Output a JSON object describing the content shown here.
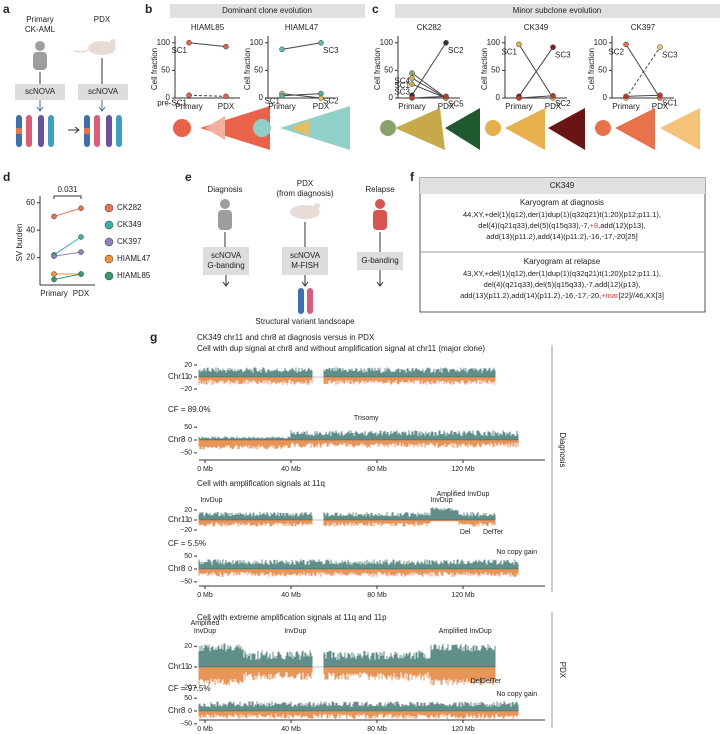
{
  "a": {
    "label": "a",
    "primary": [
      "Primary",
      "CK-AML"
    ],
    "pdx": "PDX",
    "method": [
      "scNOVA",
      "scNOVA"
    ]
  },
  "b": {
    "label": "b",
    "header": "Dominant clone evolution"
  },
  "c": {
    "label": "c",
    "header": "Minor subclone evolution"
  },
  "d": {
    "label": "d"
  },
  "chart_data": [
    {
      "type": "line",
      "title": "HIAML85",
      "y_label": "Cell fraction",
      "categories": [
        "Primary",
        "PDX"
      ],
      "ylim": [
        0,
        105
      ],
      "yticks": [
        0,
        50,
        100
      ],
      "series": [
        {
          "name": "SC1",
          "color": "#e8634a",
          "values": [
            100,
            93
          ]
        },
        {
          "name": "pre-SC1",
          "color": "#e8634a",
          "dashed": true,
          "values": [
            5,
            3
          ]
        }
      ]
    },
    {
      "type": "line",
      "title": "HIAML47",
      "y_label": "Cell fraction",
      "categories": [
        "Primary",
        "PDX"
      ],
      "ylim": [
        0,
        105
      ],
      "yticks": [
        0,
        50,
        100
      ],
      "series": [
        {
          "name": "SC3",
          "color": "#5fbfb5",
          "values": [
            88,
            100
          ]
        },
        {
          "name": "SC1",
          "color": "#e2bf5e",
          "values": [
            8,
            0
          ]
        },
        {
          "name": "SC2",
          "color": "#4fb3a8",
          "values": [
            4,
            8
          ]
        }
      ]
    },
    {
      "type": "line",
      "title": "CK282",
      "y_label": "Cell fraction",
      "categories": [
        "Primary",
        "PDX"
      ],
      "ylim": [
        0,
        105
      ],
      "yticks": [
        0,
        50,
        100
      ],
      "series": [
        {
          "name": "SC2",
          "color": "#333333",
          "values": [
            5,
            100
          ]
        },
        {
          "name": "SC4",
          "color": "#8aa36a",
          "values": [
            45,
            0
          ]
        },
        {
          "name": "SC1",
          "color": "#d9b24c",
          "values": [
            36,
            0
          ]
        },
        {
          "name": "SC3",
          "color": "#c8a94a",
          "values": [
            25,
            0
          ]
        },
        {
          "name": "SC5",
          "color": "#c0392b",
          "values": [
            0,
            3
          ]
        }
      ]
    },
    {
      "type": "line",
      "title": "CK349",
      "y_label": "Cell fraction",
      "categories": [
        "Primary",
        "PDX"
      ],
      "ylim": [
        0,
        105
      ],
      "yticks": [
        0,
        50,
        100
      ],
      "series": [
        {
          "name": "SC1",
          "color": "#e8b04a",
          "values": [
            97,
            0
          ]
        },
        {
          "name": "SC3",
          "color": "#8b1a1a",
          "values": [
            3,
            92
          ]
        },
        {
          "name": "SC2",
          "color": "#c0392b",
          "values": [
            0,
            4
          ]
        }
      ]
    },
    {
      "type": "line",
      "title": "CK397",
      "y_label": "Cell fraction",
      "categories": [
        "Primary",
        "PDX"
      ],
      "ylim": [
        0,
        105
      ],
      "yticks": [
        0,
        50,
        100
      ],
      "series": [
        {
          "name": "SC2",
          "color": "#e8734a",
          "values": [
            97,
            0
          ]
        },
        {
          "name": "SC3",
          "color": "#f5c27a",
          "dashed": true,
          "values": [
            0,
            92
          ]
        },
        {
          "name": "SC1",
          "color": "#c0392b",
          "values": [
            3,
            5
          ]
        }
      ]
    },
    {
      "type": "line",
      "y_label": "SV burden",
      "categories": [
        "Primary",
        "PDX"
      ],
      "ylim": [
        0,
        62
      ],
      "yticks": [
        20,
        40,
        60
      ],
      "annotation": "0.031",
      "legend": true,
      "series": [
        {
          "name": "CK282",
          "color": "#e8735a",
          "values": [
            50,
            56
          ]
        },
        {
          "name": "CK349",
          "color": "#3bb3a8",
          "values": [
            22,
            35
          ]
        },
        {
          "name": "CK397",
          "color": "#8a84c0",
          "values": [
            21,
            24
          ]
        },
        {
          "name": "HIAML47",
          "color": "#f0943a",
          "values": [
            8,
            8
          ]
        },
        {
          "name": "HIAML85",
          "color": "#2e9e6e",
          "values": [
            4,
            8
          ]
        }
      ]
    }
  ],
  "e": {
    "label": "e",
    "diagnosis": "Diagnosis",
    "pdx": [
      "PDX",
      "(from diagnosis)"
    ],
    "relapse": "Relapse",
    "boxes": [
      [
        "scNOVA",
        "G-banding"
      ],
      [
        "scNOVA",
        "M-FISH"
      ],
      [
        "G-banding"
      ]
    ],
    "result": "Structural variant landscape"
  },
  "f": {
    "label": "f",
    "header": "CK349",
    "blocks": [
      {
        "title": "Karyogram at diagnosis",
        "lines": [
          [
            "44,XY,+del(1)(q12),der(1)dup(1)(q32q21)t(1;20)(p12;p11.1),"
          ],
          [
            "del(4)(q21q33),del(5)(q15q33),-7,",
            {
              "text": "+8",
              "color": "#e53935"
            },
            ",add(12)(p13),"
          ],
          [
            "add(13)(p11.2),add(14)(p11.2),-16,-17,-20[25]"
          ]
        ]
      },
      {
        "title": "Karyogram at relapse",
        "lines": [
          [
            "43,XY,+del(1)(q12),der(1)dup(1)(q32q21)t(1;20)(p12;p11.1),"
          ],
          [
            "del(4)(q21q33),del(5)(q15q33),-7,add(12)(p13),"
          ],
          [
            "add(13)(p11.2),add(14)(p11.2),-16,-17,-20,",
            {
              "text": "+mar",
              "color": "#e53935"
            },
            "[22]//46,XX[3]"
          ]
        ]
      }
    ]
  },
  "g": {
    "label": "g",
    "title": "CK349 chr11 and chr8 at diagnosis versus in PDX",
    "xlim": [
      0,
      158
    ],
    "xticks": [
      {
        "value": 0,
        "label": "0 Mb"
      },
      {
        "value": 40,
        "label": "40 Mb"
      },
      {
        "value": 80,
        "label": "80 Mb"
      },
      {
        "value": 120,
        "label": "120 Mb"
      }
    ],
    "sections": [
      {
        "side_label": "Diagnosis",
        "cells": [
          {
            "title": "Cell with dup signal at chr8 and without amplification signal at chr11 (major clone)",
            "cf": "CF = 89.0%",
            "tracks": [
              {
                "label": "Chr11",
                "ylim": [
                  -30,
                  30
                ],
                "yticks": [
                  20,
                  0,
                  {
                    "value": -20,
                    "label": "−20"
                  }
                ],
                "annotations": []
              },
              {
                "label": "Chr8",
                "ylim": [
                  -70,
                  70
                ],
                "yticks": [
                  50,
                  0,
                  {
                    "value": -50,
                    "label": "−50"
                  }
                ],
                "annotations": [
                  "Trisomy"
                ]
              }
            ]
          },
          {
            "title": "Cell with amplification signals at 11q",
            "cf": "CF = 5.5%",
            "tracks": [
              {
                "label": "Chr11",
                "ylim": [
                  -30,
                  30
                ],
                "yticks": [
                  20,
                  0,
                  {
                    "value": -20,
                    "label": "−20"
                  }
                ],
                "annotations": [
                  "InvDup",
                  "InvDup",
                  "Amplified InvDup",
                  "Del",
                  "DelTer"
                ]
              },
              {
                "label": "Chr8",
                "ylim": [
                  -70,
                  70
                ],
                "yticks": [
                  50,
                  0,
                  {
                    "value": -50,
                    "label": "−50"
                  }
                ],
                "annotations": [
                  "No copy gain"
                ]
              }
            ]
          }
        ]
      },
      {
        "side_label": "PDX",
        "cells": [
          {
            "title": "Cell with extreme amplification signals at 11q and 11p",
            "cf": "CF = 97.5%",
            "tracks": [
              {
                "label": "Chr11",
                "ylim": [
                  -30,
                  30
                ],
                "yticks": [
                  20,
                  0,
                  {
                    "value": -20,
                    "label": "−20"
                  }
                ],
                "annotations": [
                  "Amplified",
                  "InvDup",
                  "InvDup",
                  "Amplified InvDup",
                  "Del",
                  "DelTer"
                ]
              },
              {
                "label": "Chr8",
                "ylim": [
                  -70,
                  70
                ],
                "yticks": [
                  50,
                  0,
                  {
                    "value": -50,
                    "label": "−50"
                  }
                ],
                "annotations": [
                  "No copy gain"
                ]
              }
            ]
          }
        ]
      }
    ]
  }
}
